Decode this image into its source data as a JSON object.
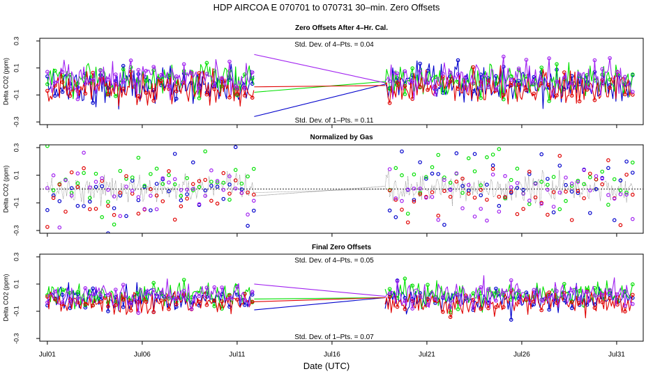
{
  "figure": {
    "title": "HDP    AIRCOA E    070701 to 070731    30–min. Zero Offsets",
    "xlabel": "Date (UTC)",
    "x_ticks": [
      {
        "day": 1,
        "label": "Jul01"
      },
      {
        "day": 6,
        "label": "Jul06"
      },
      {
        "day": 11,
        "label": "Jul11"
      },
      {
        "day": 16,
        "label": "Jul16"
      },
      {
        "day": 21,
        "label": "Jul21"
      },
      {
        "day": 26,
        "label": "Jul26"
      },
      {
        "day": 31,
        "label": "Jul31"
      }
    ],
    "series_colors": {
      "blue": "#0000cc",
      "green": "#00e000",
      "red": "#e00000",
      "purple": "#a020f0",
      "gray": "#606060"
    }
  },
  "chart_data": [
    {
      "type": "line",
      "title": "Zero Offsets After 4–Hr. Cal.",
      "ylabel": "Delta CO2 (ppm)",
      "xlim": [
        0.6,
        32.4
      ],
      "ylim": [
        -0.32,
        0.32
      ],
      "y_ticks": [
        "0.3",
        "0.1",
        "-0.1",
        "-0.3"
      ],
      "y_tick_values": [
        0.3,
        0.1,
        -0.1,
        -0.3
      ],
      "note_top": "Std. Dev. of 4–Pts. = 0.04",
      "note_bottom": "Std. Dev. of 1–Pts. = 0.11",
      "gap": {
        "start_day": 11.9,
        "end_day": 18.8
      },
      "series": [
        {
          "name": "blue",
          "color": "#0000cc",
          "dense_ranges": [
            [
              1.0,
              11.9
            ],
            [
              18.8,
              31.9
            ]
          ],
          "mean": -0.03,
          "sd": 0.07,
          "gap_values": [
            -0.26,
            -0.02
          ]
        },
        {
          "name": "green",
          "color": "#00e000",
          "dense_ranges": [
            [
              1.0,
              11.9
            ],
            [
              18.8,
              31.9
            ]
          ],
          "mean": 0.01,
          "sd": 0.06,
          "gap_values": [
            -0.08,
            0.0
          ]
        },
        {
          "name": "red",
          "color": "#e00000",
          "dense_ranges": [
            [
              1.0,
              11.9
            ],
            [
              18.8,
              31.9
            ]
          ],
          "mean": -0.05,
          "sd": 0.06,
          "gap_values": [
            -0.04,
            -0.03
          ]
        },
        {
          "name": "purple",
          "color": "#a020f0",
          "dense_ranges": [
            [
              1.0,
              11.9
            ],
            [
              18.8,
              31.9
            ]
          ],
          "mean": 0.02,
          "sd": 0.06,
          "gap_values": [
            0.2,
            -0.01
          ]
        }
      ]
    },
    {
      "type": "scatter",
      "title": "Normalized by Gas",
      "ylabel": "Delta CO2 (ppm)",
      "xlim": [
        0.6,
        32.4
      ],
      "ylim": [
        -0.32,
        0.32
      ],
      "y_ticks": [
        "0.3",
        "0.1",
        "-0.1",
        "-0.3"
      ],
      "y_tick_values": [
        0.3,
        0.1,
        -0.1,
        -0.3
      ],
      "gap": {
        "start_day": 11.9,
        "end_day": 18.8
      },
      "reference_line": {
        "name": "gray",
        "color": "#606060",
        "value": 0.0,
        "gap_values": [
          -0.05,
          0.02
        ]
      },
      "series": [
        {
          "name": "blue",
          "color": "#0000cc",
          "dense_ranges": [
            [
              1.0,
              11.9
            ],
            [
              18.8,
              31.9
            ]
          ],
          "mean": 0.0,
          "sd": 0.13
        },
        {
          "name": "green",
          "color": "#00e000",
          "dense_ranges": [
            [
              1.0,
              11.9
            ],
            [
              18.8,
              31.9
            ]
          ],
          "mean": 0.05,
          "sd": 0.1
        },
        {
          "name": "red",
          "color": "#e00000",
          "dense_ranges": [
            [
              1.0,
              11.9
            ],
            [
              18.8,
              31.9
            ]
          ],
          "mean": -0.05,
          "sd": 0.11
        },
        {
          "name": "purple",
          "color": "#a020f0",
          "dense_ranges": [
            [
              1.0,
              11.9
            ],
            [
              18.8,
              31.9
            ]
          ],
          "mean": 0.0,
          "sd": 0.12
        }
      ]
    },
    {
      "type": "line",
      "title": "Final Zero Offsets",
      "ylabel": "Delta CO2 (ppm)",
      "xlim": [
        0.6,
        32.4
      ],
      "ylim": [
        -0.32,
        0.32
      ],
      "y_ticks": [
        "0.3",
        "0.1",
        "-0.1",
        "-0.3"
      ],
      "y_tick_values": [
        0.3,
        0.1,
        -0.1,
        -0.3
      ],
      "note_top": "Std. Dev. of 4–Pts. = 0.05",
      "note_bottom": "Std. Dev. of 1–Pts. = 0.07",
      "gap": {
        "start_day": 11.9,
        "end_day": 18.8
      },
      "series": [
        {
          "name": "blue",
          "color": "#0000cc",
          "dense_ranges": [
            [
              1.0,
              11.9
            ],
            [
              18.8,
              31.9
            ]
          ],
          "mean": -0.01,
          "sd": 0.045,
          "gap_values": [
            -0.09,
            0.0
          ]
        },
        {
          "name": "green",
          "color": "#00e000",
          "dense_ranges": [
            [
              1.0,
              11.9
            ],
            [
              18.8,
              31.9
            ]
          ],
          "mean": 0.02,
          "sd": 0.045,
          "gap_values": [
            -0.01,
            0.0
          ]
        },
        {
          "name": "red",
          "color": "#e00000",
          "dense_ranges": [
            [
              1.0,
              11.9
            ],
            [
              18.8,
              31.9
            ]
          ],
          "mean": -0.04,
          "sd": 0.045,
          "gap_values": [
            -0.03,
            0.0
          ]
        },
        {
          "name": "purple",
          "color": "#a020f0",
          "dense_ranges": [
            [
              1.0,
              11.9
            ],
            [
              18.8,
              31.9
            ]
          ],
          "mean": 0.02,
          "sd": 0.045,
          "gap_values": [
            0.1,
            0.01
          ]
        }
      ]
    }
  ]
}
